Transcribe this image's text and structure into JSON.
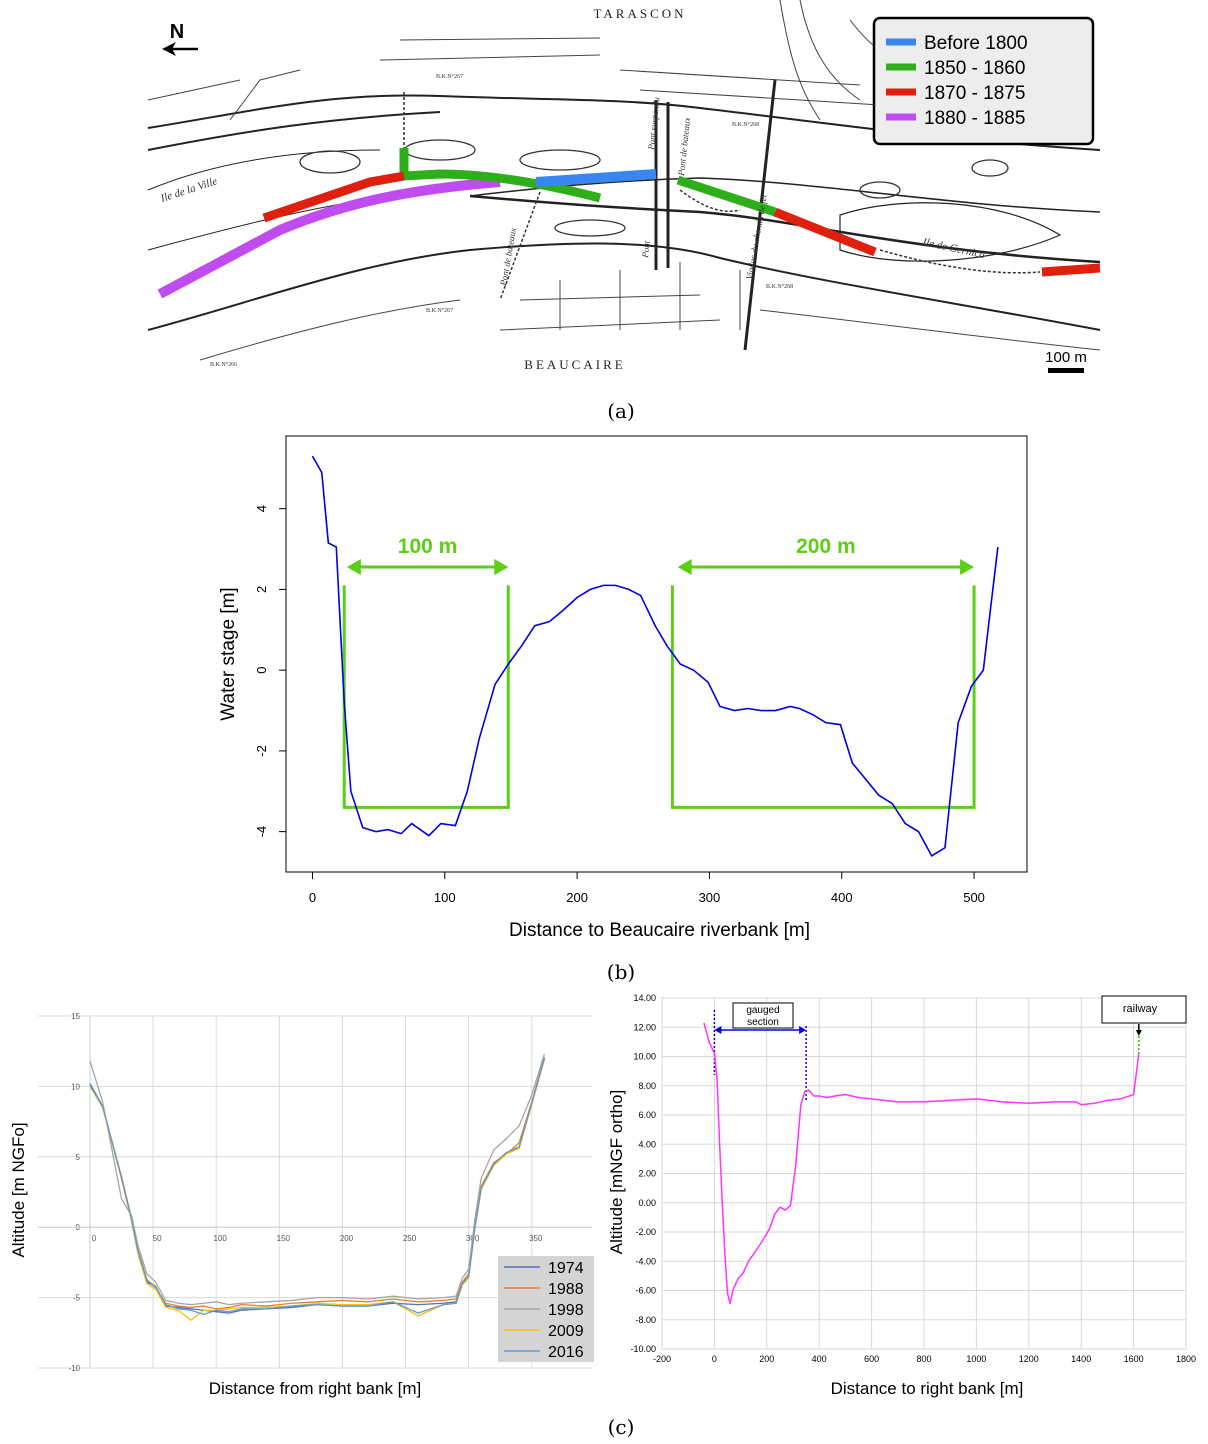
{
  "panel_labels": {
    "a": "(a)",
    "b": "(b)",
    "c": "(c)"
  },
  "map": {
    "north_label": "N",
    "town_top": "TARASCON",
    "town_bottom": "BEAUCAIRE",
    "scale_label": "100 m",
    "labels": {
      "ile_ville": "Ile de la Ville",
      "ile_gernica": "Ile de Gernica",
      "pont_suspendu": "Pont suspendu",
      "pont_bateaux": "Pont de bateaux",
      "pont_bateaux2": "Pont de bateaux",
      "viaduc": "Viaduc du chemin de fer",
      "pont": "Pont",
      "bk267": "B.K.N°267",
      "bk268": "B.K.N°268",
      "bk266": "B.K.N°266",
      "bk2672": "B.K.N°267",
      "bk2682": "B.K.N°268"
    },
    "legend": [
      {
        "label": "Before 1800",
        "color": "#3a86f0"
      },
      {
        "label": "1850 - 1860",
        "color": "#2fae1c"
      },
      {
        "label": "1870 - 1875",
        "color": "#e0200e"
      },
      {
        "label": "1880 - 1885",
        "color": "#c04cf0"
      }
    ]
  },
  "chart_data": [
    {
      "type": "line",
      "id": "b",
      "xlabel": "Distance to Beaucaire riverbank [m]",
      "ylabel": "Water stage [m]",
      "xlim": [
        -20,
        540
      ],
      "ylim": [
        -5,
        5.8
      ],
      "xticks": [
        0,
        100,
        200,
        300,
        400,
        500
      ],
      "yticks": [
        -4,
        -2,
        0,
        2,
        4
      ],
      "line_color": "#0000e0",
      "x": [
        0,
        7,
        12,
        18,
        24,
        29,
        38,
        48,
        57,
        67,
        75,
        88,
        97,
        108,
        117,
        126,
        138,
        148,
        158,
        168,
        179,
        190,
        200,
        210,
        220,
        229,
        239,
        248,
        259,
        268,
        278,
        288,
        299,
        308,
        319,
        329,
        339,
        350,
        361,
        368,
        378,
        388,
        399,
        408,
        418,
        428,
        438,
        448,
        458,
        468,
        478,
        488,
        498,
        507,
        512,
        518
      ],
      "y": [
        5.3,
        4.9,
        3.15,
        3.05,
        -0.8,
        -3.0,
        -3.9,
        -4.0,
        -3.95,
        -4.05,
        -3.8,
        -4.1,
        -3.8,
        -3.85,
        -3.0,
        -1.7,
        -0.35,
        0.15,
        0.6,
        1.1,
        1.2,
        1.5,
        1.8,
        2.0,
        2.1,
        2.1,
        2.0,
        1.85,
        1.1,
        0.6,
        0.15,
        0.0,
        -0.3,
        -0.9,
        -1.0,
        -0.95,
        -1.0,
        -1.0,
        -0.9,
        -0.95,
        -1.1,
        -1.3,
        -1.35,
        -2.3,
        -2.7,
        -3.1,
        -3.3,
        -3.8,
        -4.0,
        -4.6,
        -4.4,
        -1.3,
        -0.4,
        0.0,
        1.4,
        3.05
      ],
      "annotations": [
        {
          "text": "100 m",
          "x1": 26,
          "x2": 148,
          "color": "#5ccf14"
        },
        {
          "text": "200 m",
          "x1": 276,
          "x2": 500,
          "color": "#5ccf14"
        }
      ],
      "boxes": [
        {
          "x1": 24,
          "x2": 148,
          "top": 2.1,
          "bottom": -3.4
        },
        {
          "x1": 272,
          "x2": 500,
          "top": 2.1,
          "bottom": -3.4
        }
      ]
    },
    {
      "type": "line",
      "id": "c-left",
      "xlabel": "Distance from right bank [m]",
      "ylabel": "Altitude [m NGFo]",
      "xlim": [
        0,
        370
      ],
      "ylim": [
        -10,
        15
      ],
      "xticks": [
        0,
        50,
        100,
        150,
        200,
        250,
        300,
        350
      ],
      "yticks": [
        -10,
        -5,
        0,
        5,
        10,
        15
      ],
      "legend_position": "bottom-right",
      "series": [
        {
          "name": "1974",
          "color": "#4f72be",
          "x": [
            0,
            10,
            25,
            33,
            38,
            45,
            52,
            60,
            70,
            80,
            90,
            100,
            110,
            120,
            140,
            160,
            180,
            200,
            220,
            240,
            260,
            280,
            290,
            295,
            300,
            305,
            310,
            320,
            330,
            340,
            350,
            360
          ],
          "y": [
            10.2,
            8.6,
            3.5,
            0.5,
            -1.8,
            -3.9,
            -4.2,
            -5.6,
            -5.7,
            -5.8,
            -5.9,
            -6.0,
            -6.1,
            -5.9,
            -5.8,
            -5.7,
            -5.5,
            -5.6,
            -5.6,
            -5.4,
            -5.5,
            -5.4,
            -5.3,
            -4.0,
            -3.5,
            0.0,
            2.8,
            4.5,
            5.3,
            5.7,
            8.8,
            12.0
          ]
        },
        {
          "name": "1988",
          "color": "#ec7d31",
          "x": [
            0,
            10,
            25,
            33,
            38,
            45,
            52,
            60,
            70,
            80,
            90,
            100,
            110,
            120,
            140,
            160,
            180,
            200,
            220,
            240,
            260,
            280,
            290,
            295,
            300,
            305,
            310,
            320,
            330,
            340,
            350,
            360
          ],
          "y": [
            10.1,
            8.5,
            3.6,
            0.6,
            -1.6,
            -3.7,
            -4.3,
            -5.4,
            -5.6,
            -5.7,
            -5.6,
            -5.8,
            -5.7,
            -5.5,
            -5.6,
            -5.4,
            -5.3,
            -5.2,
            -5.3,
            -5.1,
            -5.3,
            -5.2,
            -5.1,
            -3.9,
            -3.3,
            0.1,
            2.9,
            4.6,
            5.2,
            6.0,
            8.9,
            12.1
          ]
        },
        {
          "name": "1998",
          "color": "#a5a5a5",
          "x": [
            0,
            10,
            25,
            33,
            38,
            45,
            52,
            60,
            70,
            80,
            90,
            100,
            110,
            120,
            140,
            160,
            180,
            200,
            220,
            240,
            260,
            280,
            290,
            295,
            300,
            305,
            310,
            320,
            330,
            340,
            350,
            360
          ],
          "y": [
            11.8,
            8.9,
            2.0,
            0.8,
            -1.3,
            -3.3,
            -3.9,
            -5.2,
            -5.4,
            -5.5,
            -5.4,
            -5.3,
            -5.5,
            -5.4,
            -5.3,
            -5.2,
            -5.0,
            -5.0,
            -5.1,
            -4.9,
            -5.1,
            -5.0,
            -4.9,
            -3.6,
            -3.0,
            0.6,
            3.5,
            5.5,
            6.3,
            7.2,
            9.4,
            12.3
          ]
        },
        {
          "name": "2009",
          "color": "#ffc000",
          "x": [
            0,
            10,
            25,
            33,
            38,
            45,
            52,
            60,
            70,
            80,
            90,
            100,
            110,
            120,
            140,
            160,
            180,
            200,
            220,
            240,
            260,
            280,
            290,
            295,
            300,
            305,
            310,
            320,
            330,
            340,
            350,
            360
          ],
          "y": [
            10.0,
            8.5,
            3.4,
            0.4,
            -1.9,
            -4.0,
            -4.4,
            -5.7,
            -5.9,
            -6.6,
            -5.9,
            -5.9,
            -5.8,
            -5.7,
            -5.7,
            -5.6,
            -5.4,
            -5.5,
            -5.5,
            -5.3,
            -6.3,
            -5.5,
            -5.4,
            -4.1,
            -3.6,
            -0.1,
            2.7,
            4.4,
            5.2,
            5.6,
            8.7,
            11.9
          ]
        },
        {
          "name": "2016",
          "color": "#5b9bd5",
          "x": [
            0,
            10,
            25,
            33,
            38,
            45,
            52,
            60,
            70,
            80,
            90,
            100,
            110,
            120,
            140,
            160,
            180,
            200,
            220,
            240,
            260,
            280,
            290,
            295,
            300,
            305,
            310,
            320,
            330,
            340,
            350,
            360
          ],
          "y": [
            10.1,
            8.6,
            3.5,
            0.5,
            -1.7,
            -3.8,
            -4.2,
            -5.5,
            -5.8,
            -5.9,
            -6.2,
            -5.9,
            -6.0,
            -5.8,
            -5.8,
            -5.6,
            -5.5,
            -5.6,
            -5.6,
            -5.3,
            -6.1,
            -5.5,
            -5.4,
            -4.0,
            -3.5,
            0.0,
            2.8,
            4.5,
            5.3,
            5.7,
            8.8,
            12.0
          ]
        }
      ]
    },
    {
      "type": "line",
      "id": "c-right",
      "xlabel": "Distance to right bank [m]",
      "ylabel": "Altitude [mNGF ortho]",
      "xlim": [
        -200,
        1800
      ],
      "ylim": [
        -10,
        14
      ],
      "xticks": [
        -200,
        0,
        200,
        400,
        600,
        800,
        1000,
        1200,
        1400,
        1600,
        1800
      ],
      "yticks": [
        "-10.00",
        "-8.00",
        "-6.00",
        "-4.00",
        "-2.00",
        "0.00",
        "2.00",
        "4.00",
        "6.00",
        "8.00",
        "10.00",
        "12.00",
        "14.00"
      ],
      "line_color": "#ff33ff",
      "x": [
        -40,
        -20,
        0,
        10,
        20,
        30,
        40,
        50,
        60,
        70,
        90,
        110,
        130,
        150,
        180,
        210,
        230,
        250,
        270,
        290,
        310,
        330,
        345,
        360,
        380,
        400,
        430,
        460,
        500,
        550,
        600,
        700,
        800,
        900,
        1000,
        1100,
        1200,
        1300,
        1380,
        1400,
        1450,
        1500,
        1550,
        1600,
        1620
      ],
      "y": [
        12.3,
        11.0,
        10.2,
        8.5,
        4.0,
        0.0,
        -3.5,
        -6.2,
        -6.9,
        -6.0,
        -5.2,
        -4.8,
        -4.0,
        -3.5,
        -2.7,
        -1.8,
        -0.8,
        -0.3,
        -0.5,
        -0.2,
        2.5,
        6.7,
        7.6,
        7.7,
        7.3,
        7.3,
        7.2,
        7.3,
        7.4,
        7.2,
        7.1,
        6.9,
        6.9,
        7.0,
        7.1,
        6.9,
        6.8,
        6.9,
        6.9,
        6.7,
        6.8,
        7.0,
        7.1,
        7.4,
        10.2
      ],
      "annotations": [
        {
          "text": "gauged section",
          "x1": 0,
          "x2": 350,
          "color": "#0000ff"
        },
        {
          "text": "railway",
          "x": 1620,
          "color": "#000000"
        }
      ]
    }
  ]
}
